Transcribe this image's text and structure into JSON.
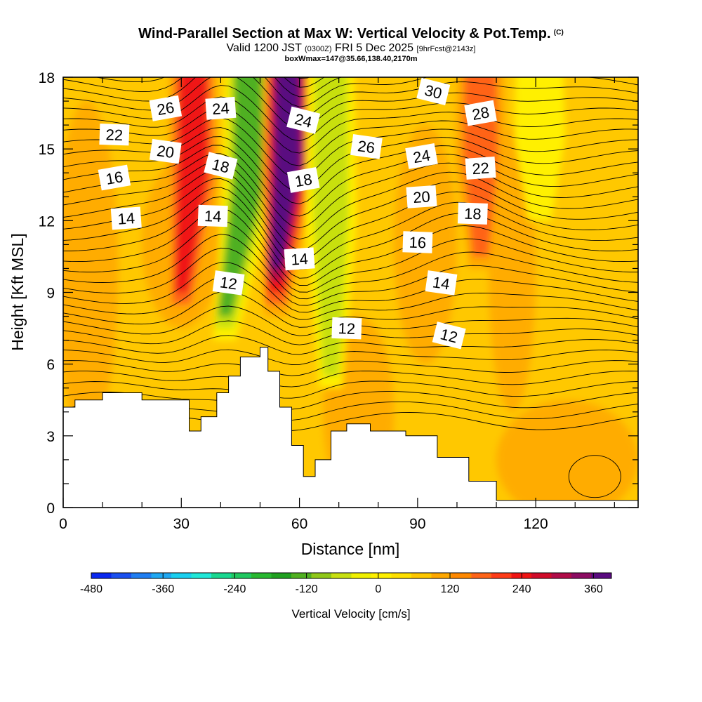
{
  "header": {
    "title": "Wind-Parallel Section at Max W: Vertical Velocity & Pot.Temp.",
    "title_mark": "(C)",
    "subtitle_a": "Valid 1200 JST",
    "subtitle_b": "(0300Z)",
    "subtitle_c": "FRI 5 Dec 2025",
    "subtitle_d": "[9hrFcst@2143z]",
    "subsubtitle": "boxWmax=147@35.66,138.40,2170m"
  },
  "chart_data": {
    "type": "heatmap",
    "xlabel": "Distance [nm]",
    "ylabel": "Height [Kft MSL]",
    "xlim": [
      0,
      146
    ],
    "ylim": [
      0,
      18
    ],
    "xticks": [
      0,
      30,
      60,
      90,
      120
    ],
    "yticks": [
      0,
      3,
      6,
      9,
      12,
      15,
      18
    ],
    "color_field": "Vertical Velocity [cm/s]",
    "colorbar": {
      "label": "Vertical Velocity [cm/s]",
      "min": -480,
      "max": 390,
      "step": 30,
      "tick_labels": [
        -480,
        -360,
        -240,
        -120,
        0,
        120,
        240,
        360
      ],
      "colors": [
        "#0a28f0",
        "#1a50f0",
        "#1f7ef2",
        "#1fa8f2",
        "#19d0f0",
        "#20e8d8",
        "#18d890",
        "#20c860",
        "#28b830",
        "#20a020",
        "#50b020",
        "#90c818",
        "#c8e010",
        "#f0f000",
        "#fff000",
        "#ffe000",
        "#ffc800",
        "#ffa800",
        "#ff8800",
        "#ff6418",
        "#ff3c18",
        "#f01414",
        "#d00c2a",
        "#b00c48",
        "#8c0c62",
        "#5a0a80"
      ]
    },
    "vertical_velocity_features": [
      {
        "x": 33,
        "y_range": [
          8,
          18
        ],
        "w_cm_s": 160
      },
      {
        "x": 47,
        "y_range": [
          7,
          18
        ],
        "w_cm_s": -200
      },
      {
        "x": 57,
        "y_range": [
          8,
          18
        ],
        "w_cm_s": 300
      },
      {
        "x": 68,
        "y_range": [
          5,
          18
        ],
        "w_cm_s": -140
      },
      {
        "x": 106,
        "y_range": [
          10,
          18
        ],
        "w_cm_s": 100
      },
      {
        "x": 121,
        "y_range": [
          12,
          18
        ],
        "w_cm_s": -60
      }
    ],
    "terrain_height_kft": [
      {
        "x": 0,
        "h": 4.2
      },
      {
        "x": 3,
        "h": 4.5
      },
      {
        "x": 10,
        "h": 4.8
      },
      {
        "x": 20,
        "h": 4.5
      },
      {
        "x": 32,
        "h": 3.2
      },
      {
        "x": 35,
        "h": 3.8
      },
      {
        "x": 39,
        "h": 4.8
      },
      {
        "x": 42,
        "h": 5.5
      },
      {
        "x": 45,
        "h": 6.3
      },
      {
        "x": 50,
        "h": 6.7
      },
      {
        "x": 52,
        "h": 5.7
      },
      {
        "x": 55,
        "h": 4.2
      },
      {
        "x": 58,
        "h": 2.6
      },
      {
        "x": 61,
        "h": 1.3
      },
      {
        "x": 64,
        "h": 2.0
      },
      {
        "x": 68,
        "h": 3.2
      },
      {
        "x": 72,
        "h": 3.5
      },
      {
        "x": 78,
        "h": 3.2
      },
      {
        "x": 87,
        "h": 3.0
      },
      {
        "x": 95,
        "h": 2.1
      },
      {
        "x": 103,
        "h": 1.1
      },
      {
        "x": 110,
        "h": 0.3
      },
      {
        "x": 146,
        "h": 0.3
      }
    ],
    "potential_temperature_labels": [
      {
        "value": "26",
        "x": 26,
        "y": 16.7
      },
      {
        "value": "24",
        "x": 40,
        "y": 16.7
      },
      {
        "value": "22",
        "x": 13,
        "y": 15.6
      },
      {
        "value": "20",
        "x": 26,
        "y": 14.9
      },
      {
        "value": "18",
        "x": 40,
        "y": 14.3
      },
      {
        "value": "16",
        "x": 13,
        "y": 13.8
      },
      {
        "value": "14",
        "x": 16,
        "y": 12.1
      },
      {
        "value": "14",
        "x": 38,
        "y": 12.2
      },
      {
        "value": "12",
        "x": 42,
        "y": 9.4
      },
      {
        "value": "24",
        "x": 61,
        "y": 16.2
      },
      {
        "value": "18",
        "x": 61,
        "y": 13.7
      },
      {
        "value": "14",
        "x": 60,
        "y": 10.4
      },
      {
        "value": "12",
        "x": 72,
        "y": 7.5
      },
      {
        "value": "26",
        "x": 77,
        "y": 15.1
      },
      {
        "value": "30",
        "x": 94,
        "y": 17.4
      },
      {
        "value": "24",
        "x": 91,
        "y": 14.7
      },
      {
        "value": "20",
        "x": 91,
        "y": 13.0
      },
      {
        "value": "16",
        "x": 90,
        "y": 11.1
      },
      {
        "value": "14",
        "x": 96,
        "y": 9.4
      },
      {
        "value": "12",
        "x": 98,
        "y": 7.2
      },
      {
        "value": "28",
        "x": 106,
        "y": 16.5
      },
      {
        "value": "22",
        "x": 106,
        "y": 14.2
      },
      {
        "value": "18",
        "x": 104,
        "y": 12.3
      }
    ]
  }
}
